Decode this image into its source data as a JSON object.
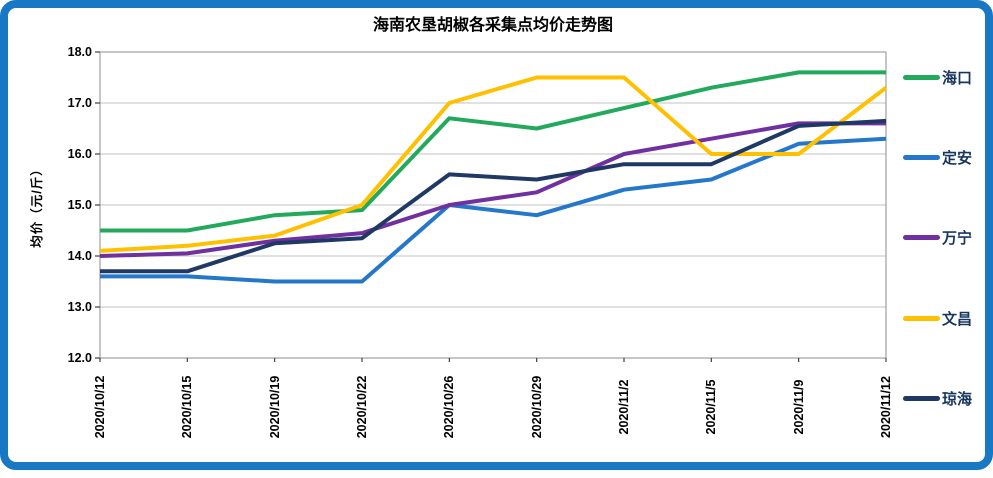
{
  "frame": {
    "border_color": "#1878C4",
    "background": "#FFFFFF"
  },
  "legend_text_color": "#17365D",
  "chart_data": {
    "type": "line",
    "title": "海南农垦胡椒各采集点均价走势图",
    "ylabel": "均价（元/斤）",
    "xlabel": "",
    "ylim": [
      12.0,
      18.0
    ],
    "ytick_step": 1.0,
    "yticks": [
      "18.0",
      "17.0",
      "16.0",
      "15.0",
      "14.0",
      "13.0",
      "12.0"
    ],
    "grid": true,
    "legend_position": "right",
    "categories": [
      "2020/10/12",
      "2020/10/15",
      "2020/10/19",
      "2020/10/22",
      "2020/10/26",
      "2020/10/29",
      "2020/11/2",
      "2020/11/5",
      "2020/11/9",
      "2020/11/12"
    ],
    "series": [
      {
        "id": "haikou",
        "name": "海口",
        "color": "#23A95C",
        "values": [
          14.5,
          14.5,
          14.8,
          14.9,
          16.7,
          16.5,
          16.9,
          17.3,
          17.6,
          17.6
        ]
      },
      {
        "id": "dingan",
        "name": "定安",
        "color": "#2577C9",
        "values": [
          13.6,
          13.6,
          13.5,
          13.5,
          15.0,
          14.8,
          15.3,
          15.5,
          16.2,
          16.3
        ]
      },
      {
        "id": "wanning",
        "name": "万宁",
        "color": "#7030A0",
        "values": [
          14.0,
          14.05,
          14.3,
          14.45,
          15.0,
          15.25,
          16.0,
          16.3,
          16.6,
          16.6
        ]
      },
      {
        "id": "wenchang",
        "name": "文昌",
        "color": "#FFC000",
        "values": [
          14.1,
          14.2,
          14.4,
          15.0,
          17.0,
          17.5,
          17.5,
          16.0,
          16.0,
          17.3
        ]
      },
      {
        "id": "qionghai",
        "name": "琼海",
        "color": "#1F3864",
        "values": [
          13.7,
          13.7,
          14.25,
          14.35,
          15.6,
          15.5,
          15.8,
          15.8,
          16.55,
          16.65
        ]
      }
    ]
  }
}
